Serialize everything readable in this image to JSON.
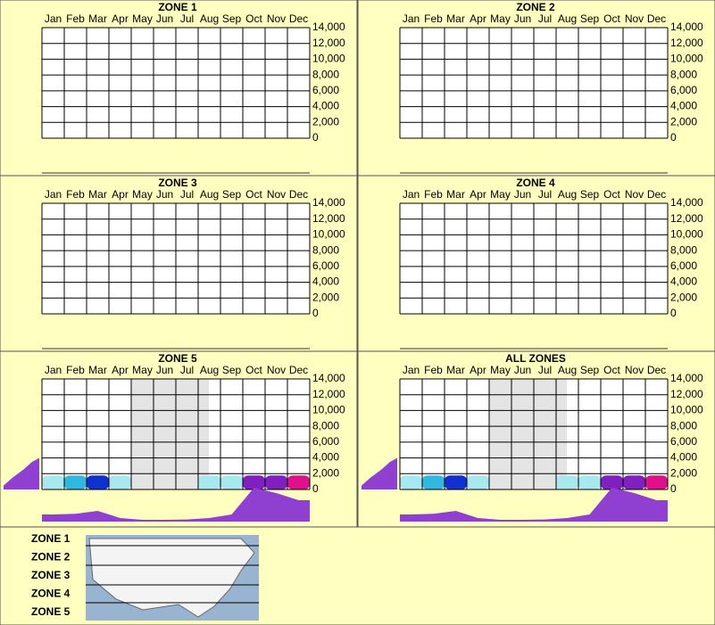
{
  "chart_data": [
    {
      "type": "heatmap",
      "title": "ZONE 1",
      "categories": [
        "Jan",
        "Feb",
        "Mar",
        "Apr",
        "May",
        "Jun",
        "Jul",
        "Aug",
        "Sep",
        "Oct",
        "Nov",
        "Dec"
      ],
      "ylim": [
        0,
        14000
      ],
      "yticks": [
        0,
        {
          "value": 2000,
          "label": "2,000"
        },
        {
          "value": 4000,
          "label": "4,000"
        },
        {
          "value": 6000,
          "label": "6,000"
        },
        {
          "value": 8000,
          "label": "8,000"
        },
        {
          "value": 10000,
          "label": "10,000"
        },
        {
          "value": 12000,
          "label": "12,000"
        },
        {
          "value": 14000,
          "label": "14,000"
        }
      ]
    },
    {
      "type": "heatmap",
      "title": "ZONE 2",
      "categories": [
        "Jan",
        "Feb",
        "Mar",
        "Apr",
        "May",
        "Jun",
        "Jul",
        "Aug",
        "Sep",
        "Oct",
        "Nov",
        "Dec"
      ],
      "ylim": [
        0,
        14000
      ],
      "yticks": [
        0,
        {
          "value": 2000,
          "label": "2,000"
        },
        {
          "value": 4000,
          "label": "4,000"
        },
        {
          "value": 6000,
          "label": "6,000"
        },
        {
          "value": 8000,
          "label": "8,000"
        },
        {
          "value": 10000,
          "label": "10,000"
        },
        {
          "value": 12000,
          "label": "12,000"
        },
        {
          "value": 14000,
          "label": "14,000"
        }
      ]
    },
    {
      "type": "heatmap",
      "title": "ZONE 3",
      "categories": [
        "Jan",
        "Feb",
        "Mar",
        "Apr",
        "May",
        "Jun",
        "Jul",
        "Aug",
        "Sep",
        "Oct",
        "Nov",
        "Dec"
      ],
      "ylim": [
        0,
        14000
      ],
      "yticks": [
        0,
        {
          "value": 2000,
          "label": "2,000"
        },
        {
          "value": 4000,
          "label": "4,000"
        },
        {
          "value": 6000,
          "label": "6,000"
        },
        {
          "value": 8000,
          "label": "8,000"
        },
        {
          "value": 10000,
          "label": "10,000"
        },
        {
          "value": 12000,
          "label": "12,000"
        },
        {
          "value": 14000,
          "label": "14,000"
        }
      ]
    },
    {
      "type": "heatmap",
      "title": "ZONE 4",
      "categories": [
        "Jan",
        "Feb",
        "Mar",
        "Apr",
        "May",
        "Jun",
        "Jul",
        "Aug",
        "Sep",
        "Oct",
        "Nov",
        "Dec"
      ],
      "ylim": [
        0,
        14000
      ],
      "yticks": [
        0,
        {
          "value": 2000,
          "label": "2,000"
        },
        {
          "value": 4000,
          "label": "4,000"
        },
        {
          "value": 6000,
          "label": "6,000"
        },
        {
          "value": 8000,
          "label": "8,000"
        },
        {
          "value": 10000,
          "label": "10,000"
        },
        {
          "value": 12000,
          "label": "12,000"
        },
        {
          "value": 14000,
          "label": "14,000"
        }
      ]
    },
    {
      "type": "heatmap",
      "title": "ZONE 5",
      "categories": [
        "Jan",
        "Feb",
        "Mar",
        "Apr",
        "May",
        "Jun",
        "Jul",
        "Aug",
        "Sep",
        "Oct",
        "Nov",
        "Dec"
      ],
      "ylim": [
        0,
        14000
      ],
      "yticks": [
        0,
        {
          "value": 2000,
          "label": "2,000"
        },
        {
          "value": 4000,
          "label": "4,000"
        },
        {
          "value": 6000,
          "label": "6,000"
        },
        {
          "value": 8000,
          "label": "8,000"
        },
        {
          "value": 10000,
          "label": "10,000"
        },
        {
          "value": 12000,
          "label": "12,000"
        },
        {
          "value": 14000,
          "label": "14,000"
        }
      ],
      "shaded": [
        "May",
        "Jun",
        "Jul"
      ],
      "heat": [
        3,
        4,
        7,
        2,
        0,
        0,
        0,
        1,
        3,
        9,
        8,
        10
      ],
      "heat_lim": [
        0,
        10
      ],
      "month_profile": [
        20,
        22,
        30,
        10,
        5,
        5,
        6,
        10,
        20,
        95,
        80,
        60
      ],
      "elevation_profile": [
        100,
        75,
        45,
        20
      ],
      "profile_lim": [
        0,
        100
      ]
    },
    {
      "type": "heatmap",
      "title": "ALL ZONES",
      "categories": [
        "Jan",
        "Feb",
        "Mar",
        "Apr",
        "May",
        "Jun",
        "Jul",
        "Aug",
        "Sep",
        "Oct",
        "Nov",
        "Dec"
      ],
      "ylim": [
        0,
        14000
      ],
      "yticks": [
        0,
        {
          "value": 2000,
          "label": "2,000"
        },
        {
          "value": 4000,
          "label": "4,000"
        },
        {
          "value": 6000,
          "label": "6,000"
        },
        {
          "value": 8000,
          "label": "8,000"
        },
        {
          "value": 10000,
          "label": "10,000"
        },
        {
          "value": 12000,
          "label": "12,000"
        },
        {
          "value": 14000,
          "label": "14,000"
        }
      ],
      "shaded": [
        "May",
        "Jun",
        "Jul"
      ],
      "heat": [
        3,
        4,
        7,
        2,
        0,
        0,
        0,
        1,
        3,
        9,
        8,
        10
      ],
      "heat_lim": [
        0,
        10
      ],
      "month_profile": [
        20,
        22,
        30,
        10,
        5,
        5,
        6,
        10,
        20,
        95,
        80,
        60
      ],
      "elevation_profile": [
        100,
        75,
        45,
        20
      ],
      "profile_lim": [
        0,
        100
      ]
    }
  ],
  "legend": {
    "zones": [
      "ZONE 1",
      "ZONE 2",
      "ZONE 3",
      "ZONE 4",
      "ZONE 5"
    ]
  }
}
